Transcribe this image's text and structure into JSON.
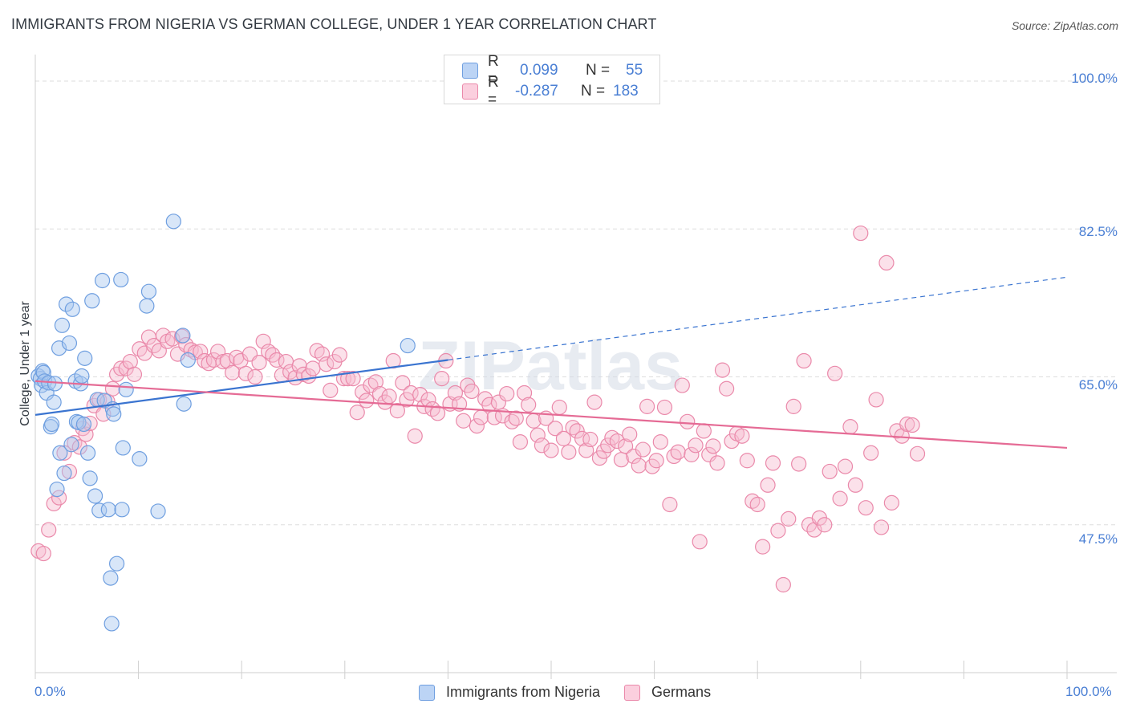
{
  "title": "IMMIGRANTS FROM NIGERIA VS GERMAN COLLEGE, UNDER 1 YEAR CORRELATION CHART",
  "source": "Source: ZipAtlas.com",
  "watermark": "ZIPatlas",
  "legend_top": {
    "rows": [
      {
        "r_label": "R =",
        "r_value": "0.099",
        "n_label": "N =",
        "n_value": "55"
      },
      {
        "r_label": "R =",
        "r_value": "-0.287",
        "n_label": "N =",
        "n_value": "183"
      }
    ]
  },
  "colors": {
    "blue_fill": "#a9c8f0",
    "blue_stroke": "#6f9fe0",
    "blue_line": "#3a74d0",
    "pink_fill": "#f6bcd0",
    "pink_stroke": "#ea89aa",
    "pink_line": "#e56b95",
    "axis_text": "#4a7fd4",
    "grid": "#dddddd"
  },
  "chart_data": {
    "type": "scatter",
    "title": "IMMIGRANTS FROM NIGERIA VS GERMAN COLLEGE, UNDER 1 YEAR CORRELATION CHART",
    "xlabel": "",
    "ylabel": "College, Under 1 year",
    "xlim": [
      0,
      100
    ],
    "ylim": [
      30,
      102
    ],
    "x_tick_labels": [
      "0.0%",
      "100.0%"
    ],
    "y_ticks": [
      47.5,
      65.0,
      82.5,
      100.0
    ],
    "y_tick_labels": [
      "47.5%",
      "65.0%",
      "82.5%",
      "100.0%"
    ],
    "legend_position": "bottom-center",
    "series": [
      {
        "name": "Immigrants from Nigeria",
        "color": "#6f9fe0",
        "R": 0.099,
        "N": 55,
        "trend": {
          "x0": 0,
          "y0": 60.5,
          "x1": 40,
          "y1": 67.0,
          "dashed_to_x": 100,
          "dashed_to_y": 76.8
        },
        "points": [
          [
            0.3,
            65.1
          ],
          [
            0.5,
            64.8
          ],
          [
            0.6,
            64.0
          ],
          [
            0.7,
            65.7
          ],
          [
            0.8,
            65.5
          ],
          [
            0.9,
            64.5
          ],
          [
            1.1,
            63.1
          ],
          [
            1.3,
            64.3
          ],
          [
            1.5,
            59.1
          ],
          [
            1.6,
            59.4
          ],
          [
            1.8,
            62.0
          ],
          [
            1.9,
            64.2
          ],
          [
            2.1,
            51.7
          ],
          [
            2.3,
            68.4
          ],
          [
            2.4,
            56.0
          ],
          [
            2.6,
            71.1
          ],
          [
            2.8,
            53.6
          ],
          [
            3.0,
            73.6
          ],
          [
            3.3,
            69.0
          ],
          [
            3.5,
            57.0
          ],
          [
            3.6,
            73.0
          ],
          [
            3.9,
            64.5
          ],
          [
            4.0,
            59.7
          ],
          [
            4.2,
            59.6
          ],
          [
            4.4,
            64.2
          ],
          [
            4.5,
            65.1
          ],
          [
            4.7,
            59.4
          ],
          [
            4.8,
            67.2
          ],
          [
            5.1,
            56.0
          ],
          [
            5.3,
            53.0
          ],
          [
            5.5,
            74.0
          ],
          [
            5.8,
            50.9
          ],
          [
            6.0,
            62.3
          ],
          [
            6.2,
            49.2
          ],
          [
            6.5,
            76.4
          ],
          [
            6.7,
            62.2
          ],
          [
            7.1,
            49.3
          ],
          [
            7.3,
            41.2
          ],
          [
            7.4,
            35.8
          ],
          [
            7.5,
            61.2
          ],
          [
            7.6,
            60.6
          ],
          [
            7.9,
            42.9
          ],
          [
            8.3,
            76.5
          ],
          [
            8.4,
            49.3
          ],
          [
            8.5,
            56.6
          ],
          [
            8.8,
            63.5
          ],
          [
            10.1,
            55.3
          ],
          [
            10.8,
            73.4
          ],
          [
            11.0,
            75.1
          ],
          [
            11.9,
            49.1
          ],
          [
            13.4,
            83.4
          ],
          [
            14.3,
            69.9
          ],
          [
            14.4,
            61.8
          ],
          [
            14.8,
            67.0
          ],
          [
            36.1,
            68.7
          ]
        ]
      },
      {
        "name": "Germans",
        "color": "#ea89aa",
        "R": -0.287,
        "N": 183,
        "trend": {
          "x0": 0,
          "y0": 64.5,
          "x1": 100,
          "y1": 56.6
        },
        "points": [
          [
            0.3,
            44.4
          ],
          [
            0.8,
            44.1
          ],
          [
            1.3,
            46.9
          ],
          [
            1.8,
            50.0
          ],
          [
            2.3,
            50.7
          ],
          [
            2.8,
            56.0
          ],
          [
            3.3,
            53.8
          ],
          [
            3.8,
            57.2
          ],
          [
            4.3,
            56.7
          ],
          [
            4.6,
            58.9
          ],
          [
            4.9,
            58.2
          ],
          [
            5.3,
            59.5
          ],
          [
            5.7,
            61.6
          ],
          [
            6.2,
            62.3
          ],
          [
            6.6,
            60.6
          ],
          [
            7.0,
            62.1
          ],
          [
            7.5,
            63.6
          ],
          [
            7.9,
            65.3
          ],
          [
            8.3,
            66.0
          ],
          [
            8.8,
            66.0
          ],
          [
            9.2,
            66.8
          ],
          [
            9.6,
            65.3
          ],
          [
            10.1,
            68.3
          ],
          [
            10.6,
            67.8
          ],
          [
            11.0,
            69.7
          ],
          [
            11.5,
            68.7
          ],
          [
            12.0,
            68.1
          ],
          [
            12.4,
            69.9
          ],
          [
            12.8,
            69.2
          ],
          [
            13.3,
            69.5
          ],
          [
            13.8,
            67.7
          ],
          [
            14.2,
            69.8
          ],
          [
            14.6,
            68.8
          ],
          [
            15.1,
            68.2
          ],
          [
            15.5,
            67.9
          ],
          [
            16.0,
            68.0
          ],
          [
            16.4,
            66.9
          ],
          [
            16.8,
            66.6
          ],
          [
            17.3,
            67.0
          ],
          [
            17.7,
            68.0
          ],
          [
            18.2,
            66.8
          ],
          [
            18.6,
            66.9
          ],
          [
            19.1,
            65.5
          ],
          [
            19.5,
            67.3
          ],
          [
            19.9,
            66.9
          ],
          [
            20.4,
            65.4
          ],
          [
            20.8,
            67.7
          ],
          [
            21.3,
            65.0
          ],
          [
            21.7,
            66.7
          ],
          [
            22.1,
            69.2
          ],
          [
            22.6,
            68.0
          ],
          [
            23.0,
            67.6
          ],
          [
            23.4,
            67.0
          ],
          [
            23.9,
            65.2
          ],
          [
            24.3,
            66.8
          ],
          [
            24.7,
            65.6
          ],
          [
            25.2,
            64.9
          ],
          [
            25.6,
            66.3
          ],
          [
            26.0,
            65.3
          ],
          [
            26.5,
            65.1
          ],
          [
            26.9,
            66.0
          ],
          [
            27.3,
            68.1
          ],
          [
            27.8,
            67.7
          ],
          [
            28.2,
            66.5
          ],
          [
            28.6,
            63.4
          ],
          [
            29.0,
            66.8
          ],
          [
            29.5,
            67.6
          ],
          [
            29.9,
            64.8
          ],
          [
            30.3,
            64.8
          ],
          [
            30.8,
            64.8
          ],
          [
            31.2,
            60.8
          ],
          [
            31.7,
            63.2
          ],
          [
            32.1,
            62.2
          ],
          [
            32.5,
            64.0
          ],
          [
            33.0,
            64.4
          ],
          [
            33.4,
            63.0
          ],
          [
            33.9,
            62.0
          ],
          [
            34.3,
            62.7
          ],
          [
            34.7,
            66.9
          ],
          [
            35.1,
            61.0
          ],
          [
            35.6,
            64.3
          ],
          [
            36.0,
            62.3
          ],
          [
            36.4,
            63.1
          ],
          [
            36.8,
            58.0
          ],
          [
            37.3,
            62.9
          ],
          [
            37.7,
            61.5
          ],
          [
            38.1,
            62.3
          ],
          [
            38.5,
            61.2
          ],
          [
            39.0,
            60.7
          ],
          [
            39.4,
            64.8
          ],
          [
            39.8,
            66.9
          ],
          [
            40.2,
            61.8
          ],
          [
            40.7,
            63.1
          ],
          [
            41.1,
            61.8
          ],
          [
            41.5,
            59.8
          ],
          [
            41.9,
            64.0
          ],
          [
            42.3,
            63.3
          ],
          [
            42.8,
            59.2
          ],
          [
            43.2,
            60.2
          ],
          [
            43.6,
            62.4
          ],
          [
            44.0,
            61.7
          ],
          [
            44.5,
            60.2
          ],
          [
            44.9,
            62.0
          ],
          [
            45.3,
            60.4
          ],
          [
            45.7,
            63.0
          ],
          [
            46.2,
            59.7
          ],
          [
            46.6,
            60.1
          ],
          [
            47.0,
            57.3
          ],
          [
            47.4,
            63.1
          ],
          [
            47.8,
            61.7
          ],
          [
            48.3,
            59.8
          ],
          [
            48.7,
            58.1
          ],
          [
            49.1,
            56.9
          ],
          [
            49.5,
            60.1
          ],
          [
            50.0,
            56.3
          ],
          [
            50.4,
            58.9
          ],
          [
            50.8,
            61.4
          ],
          [
            51.2,
            57.7
          ],
          [
            51.7,
            56.1
          ],
          [
            52.1,
            59.0
          ],
          [
            52.5,
            58.6
          ],
          [
            53.0,
            57.7
          ],
          [
            53.4,
            56.3
          ],
          [
            53.8,
            57.6
          ],
          [
            54.2,
            62.0
          ],
          [
            54.7,
            55.4
          ],
          [
            55.1,
            56.2
          ],
          [
            55.5,
            56.9
          ],
          [
            55.9,
            57.8
          ],
          [
            56.4,
            57.4
          ],
          [
            56.8,
            55.2
          ],
          [
            57.2,
            56.8
          ],
          [
            57.6,
            58.2
          ],
          [
            58.0,
            55.6
          ],
          [
            58.5,
            54.5
          ],
          [
            58.9,
            56.4
          ],
          [
            59.3,
            61.5
          ],
          [
            59.8,
            54.4
          ],
          [
            60.2,
            55.1
          ],
          [
            60.6,
            57.3
          ],
          [
            61.0,
            61.4
          ],
          [
            61.5,
            49.9
          ],
          [
            61.9,
            55.6
          ],
          [
            62.3,
            56.1
          ],
          [
            62.7,
            64.0
          ],
          [
            63.2,
            59.7
          ],
          [
            63.6,
            55.8
          ],
          [
            64.0,
            56.9
          ],
          [
            64.4,
            45.5
          ],
          [
            64.8,
            58.6
          ],
          [
            65.3,
            55.8
          ],
          [
            65.7,
            56.8
          ],
          [
            66.1,
            54.8
          ],
          [
            66.6,
            65.8
          ],
          [
            67.0,
            63.6
          ],
          [
            67.5,
            57.4
          ],
          [
            68.0,
            58.3
          ],
          [
            68.5,
            58.0
          ],
          [
            69.0,
            55.1
          ],
          [
            69.5,
            50.3
          ],
          [
            70.0,
            49.9
          ],
          [
            70.5,
            44.9
          ],
          [
            71.0,
            52.2
          ],
          [
            71.5,
            54.8
          ],
          [
            72.0,
            46.8
          ],
          [
            72.5,
            40.4
          ],
          [
            73.0,
            48.2
          ],
          [
            73.5,
            61.5
          ],
          [
            74.0,
            54.7
          ],
          [
            74.5,
            66.9
          ],
          [
            75.0,
            47.5
          ],
          [
            75.5,
            46.9
          ],
          [
            76.0,
            48.3
          ],
          [
            76.5,
            47.5
          ],
          [
            77.0,
            53.8
          ],
          [
            77.5,
            65.4
          ],
          [
            78.0,
            50.6
          ],
          [
            78.5,
            54.4
          ],
          [
            79.0,
            59.1
          ],
          [
            79.5,
            52.2
          ],
          [
            80.0,
            82.0
          ],
          [
            80.5,
            49.5
          ],
          [
            81.0,
            56.0
          ],
          [
            81.5,
            62.3
          ],
          [
            82.0,
            47.2
          ],
          [
            82.5,
            78.5
          ],
          [
            83.0,
            50.1
          ],
          [
            83.5,
            58.6
          ],
          [
            84.0,
            58.0
          ],
          [
            84.5,
            59.4
          ],
          [
            85.0,
            59.3
          ],
          [
            85.5,
            55.9
          ]
        ]
      }
    ]
  },
  "axis": {
    "x_left_label": "0.0%",
    "x_right_label": "100.0%"
  }
}
